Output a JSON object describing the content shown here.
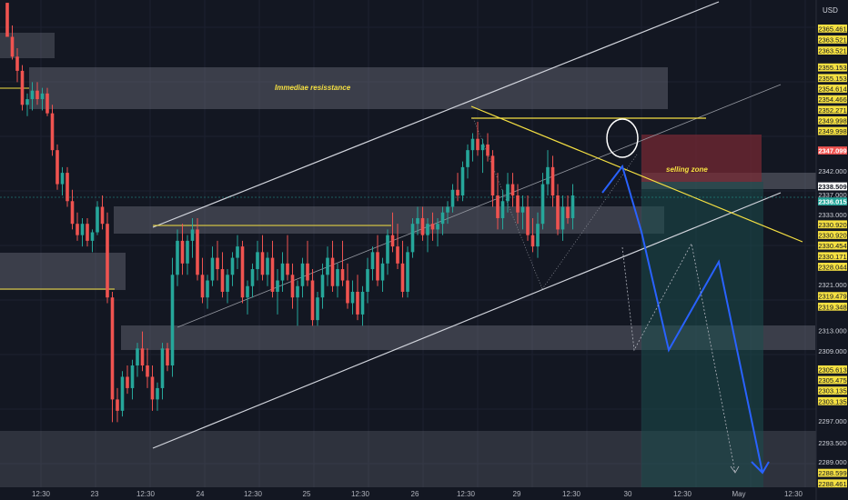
{
  "chart_data": {
    "type": "candlestick",
    "currency_label": "USD",
    "ylim": [
      2284.5,
      2370.5
    ],
    "annotations": {
      "resistance_label": "Immediae resisstance",
      "selling_label": "selling zone"
    },
    "y_tick_labels": [
      {
        "v": 2365.461,
        "t": "2365.461",
        "style": "yellow"
      },
      {
        "v": 2363.521,
        "t": "2363.521",
        "style": "yellow"
      },
      {
        "v": 2361.581,
        "t": "2363.521",
        "style": "yellow"
      },
      {
        "v": 2358.6,
        "t": "2355.153",
        "style": "yellow"
      },
      {
        "v": 2356.73,
        "t": "2355.153",
        "style": "yellow"
      },
      {
        "v": 2354.86,
        "t": "2354.614",
        "style": "yellow"
      },
      {
        "v": 2352.99,
        "t": "2354.466",
        "style": "yellow"
      },
      {
        "v": 2351.12,
        "t": "2352.271",
        "style": "yellow"
      },
      {
        "v": 2349.25,
        "t": "2349.998",
        "style": "yellow"
      },
      {
        "v": 2347.38,
        "t": "2349.998",
        "style": "yellow"
      },
      {
        "v": 2343.94,
        "t": "2347.099",
        "style": "red"
      },
      {
        "v": 2340.3,
        "t": "2342.000",
        "style": "plain"
      },
      {
        "v": 2337.6,
        "t": "2338.509",
        "style": "white"
      },
      {
        "v": 2336.2,
        "t": "2337.000",
        "style": "plain"
      },
      {
        "v": 2334.94,
        "t": "2336.015",
        "style": "teal"
      },
      {
        "v": 2332.6,
        "t": "2333.000",
        "style": "plain"
      },
      {
        "v": 2330.9,
        "t": "2330.920",
        "style": "yellow"
      },
      {
        "v": 2329.03,
        "t": "2330.920",
        "style": "yellow"
      },
      {
        "v": 2327.16,
        "t": "2330.454",
        "style": "yellow"
      },
      {
        "v": 2325.29,
        "t": "2330.171",
        "style": "yellow"
      },
      {
        "v": 2323.42,
        "t": "2328.044",
        "style": "yellow"
      },
      {
        "v": 2320.3,
        "t": "2321.000",
        "style": "plain"
      },
      {
        "v": 2318.25,
        "t": "2319.479",
        "style": "yellow"
      },
      {
        "v": 2316.38,
        "t": "2319.348",
        "style": "yellow"
      },
      {
        "v": 2312.2,
        "t": "2313.000",
        "style": "plain"
      },
      {
        "v": 2308.6,
        "t": "2309.000",
        "style": "plain"
      },
      {
        "v": 2305.3,
        "t": "2305.613",
        "style": "yellow"
      },
      {
        "v": 2303.43,
        "t": "2305.475",
        "style": "yellow"
      },
      {
        "v": 2301.56,
        "t": "2303.135",
        "style": "yellow"
      },
      {
        "v": 2299.69,
        "t": "2303.135",
        "style": "yellow"
      },
      {
        "v": 2296.2,
        "t": "2297.000",
        "style": "plain"
      },
      {
        "v": 2292.4,
        "t": "2293.500",
        "style": "plain"
      },
      {
        "v": 2289.0,
        "t": "2289.000",
        "style": "plain"
      },
      {
        "v": 2287.05,
        "t": "2288.599",
        "style": "yellow"
      },
      {
        "v": 2285.18,
        "t": "2288.461",
        "style": "yellow"
      }
    ],
    "x_tick_labels": [
      "12:30",
      "23",
      "12:30",
      "24",
      "12:30",
      "25",
      "12:30",
      "26",
      "12:30",
      "29",
      "12:30",
      "30",
      "12:30",
      "May",
      "12:30"
    ],
    "candles": [
      [
        2370,
        2370,
        2364,
        2364
      ],
      [
        2364,
        2366,
        2360,
        2360.5
      ],
      [
        2360.5,
        2362,
        2356,
        2358
      ],
      [
        2358,
        2359,
        2351,
        2352
      ],
      [
        2352,
        2354,
        2350,
        2353
      ],
      [
        2353,
        2356,
        2351,
        2354.5
      ],
      [
        2354.5,
        2356,
        2352,
        2353
      ],
      [
        2353,
        2355,
        2351,
        2354
      ],
      [
        2354,
        2355,
        2350,
        2350.5
      ],
      [
        2350.5,
        2352,
        2343,
        2344
      ],
      [
        2344,
        2345,
        2337,
        2338
      ],
      [
        2338,
        2341,
        2336,
        2340
      ],
      [
        2340,
        2341,
        2334,
        2335
      ],
      [
        2335,
        2337,
        2330,
        2331
      ],
      [
        2331,
        2333,
        2328,
        2329
      ],
      [
        2329,
        2332,
        2327,
        2331
      ],
      [
        2331,
        2332,
        2327,
        2328
      ],
      [
        2328,
        2330,
        2326,
        2329.5
      ],
      [
        2329.5,
        2335,
        2329,
        2334
      ],
      [
        2334,
        2336,
        2330,
        2331
      ],
      [
        2331,
        2333,
        2317,
        2318
      ],
      [
        2318,
        2319,
        2296,
        2300
      ],
      [
        2300,
        2302,
        2296,
        2298
      ],
      [
        2298,
        2305,
        2297,
        2304
      ],
      [
        2304,
        2306,
        2301,
        2302
      ],
      [
        2302,
        2307,
        2300,
        2306
      ],
      [
        2306,
        2310,
        2304,
        2309
      ],
      [
        2309,
        2312,
        2305,
        2306
      ],
      [
        2306,
        2309,
        2302,
        2304
      ],
      [
        2304,
        2306,
        2298,
        2300
      ],
      [
        2300,
        2303,
        2298,
        2302
      ],
      [
        2302,
        2310,
        2300,
        2309
      ],
      [
        2309,
        2310,
        2305,
        2306
      ],
      [
        2306,
        2325,
        2304,
        2322
      ],
      [
        2322,
        2330,
        2320,
        2328
      ],
      [
        2328,
        2331,
        2322,
        2324
      ],
      [
        2324,
        2329,
        2322,
        2328
      ],
      [
        2328,
        2332,
        2325,
        2330
      ],
      [
        2330,
        2332,
        2321,
        2322
      ],
      [
        2322,
        2325,
        2317,
        2318
      ],
      [
        2318,
        2322,
        2316,
        2321
      ],
      [
        2321,
        2327,
        2320,
        2325
      ],
      [
        2325,
        2328,
        2321,
        2323
      ],
      [
        2323,
        2326,
        2318,
        2319
      ],
      [
        2319,
        2323,
        2317,
        2322
      ],
      [
        2322,
        2326,
        2320,
        2325
      ],
      [
        2325,
        2329,
        2323,
        2327
      ],
      [
        2327,
        2328,
        2317,
        2318
      ],
      [
        2318,
        2321,
        2315,
        2320
      ],
      [
        2320,
        2324,
        2318,
        2323
      ],
      [
        2323,
        2328,
        2321,
        2326
      ],
      [
        2326,
        2329,
        2321,
        2322
      ],
      [
        2322,
        2326,
        2320,
        2325
      ],
      [
        2325,
        2328,
        2318,
        2319
      ],
      [
        2319,
        2323,
        2315,
        2321
      ],
      [
        2321,
        2326,
        2319,
        2324
      ],
      [
        2324,
        2329,
        2321,
        2322
      ],
      [
        2322,
        2324,
        2316,
        2318
      ],
      [
        2318,
        2321,
        2313,
        2320
      ],
      [
        2320,
        2325,
        2318,
        2324
      ],
      [
        2324,
        2328,
        2320,
        2321
      ],
      [
        2321,
        2323,
        2313,
        2314
      ],
      [
        2314,
        2319,
        2313,
        2318
      ],
      [
        2318,
        2324,
        2316,
        2322
      ],
      [
        2322,
        2327,
        2320,
        2325
      ],
      [
        2325,
        2328,
        2319,
        2320
      ],
      [
        2320,
        2324,
        2318,
        2323
      ],
      [
        2323,
        2328,
        2320,
        2321
      ],
      [
        2321,
        2324,
        2316,
        2317
      ],
      [
        2317,
        2321,
        2315,
        2319
      ],
      [
        2319,
        2322,
        2314,
        2315
      ],
      [
        2315,
        2320,
        2313,
        2319
      ],
      [
        2319,
        2325,
        2317,
        2323
      ],
      [
        2323,
        2327,
        2321,
        2326
      ],
      [
        2326,
        2329,
        2320,
        2321
      ],
      [
        2321,
        2325,
        2319,
        2324
      ],
      [
        2324,
        2330,
        2322,
        2329
      ],
      [
        2329,
        2333,
        2326,
        2327
      ],
      [
        2327,
        2331,
        2323,
        2324
      ],
      [
        2324,
        2328,
        2318,
        2319
      ],
      [
        2319,
        2327,
        2318,
        2326
      ],
      [
        2326,
        2332,
        2325,
        2331
      ],
      [
        2331,
        2334,
        2329,
        2332
      ],
      [
        2332,
        2334,
        2328,
        2329
      ],
      [
        2329,
        2332,
        2326,
        2331
      ],
      [
        2331,
        2333,
        2328,
        2330
      ],
      [
        2330,
        2332,
        2327,
        2331
      ],
      [
        2331,
        2334,
        2329,
        2333
      ],
      [
        2333,
        2335,
        2331,
        2334
      ],
      [
        2334,
        2338,
        2333,
        2337
      ],
      [
        2337,
        2340,
        2335,
        2336
      ],
      [
        2336,
        2342,
        2335,
        2341
      ],
      [
        2341,
        2345,
        2339,
        2344
      ],
      [
        2344,
        2347,
        2342,
        2346
      ],
      [
        2346,
        2349,
        2343,
        2344
      ],
      [
        2344,
        2346,
        2340,
        2345
      ],
      [
        2345,
        2347,
        2342,
        2343
      ],
      [
        2343,
        2344,
        2334,
        2336
      ],
      [
        2336,
        2340,
        2330,
        2332
      ],
      [
        2332,
        2337,
        2330,
        2335
      ],
      [
        2335,
        2340,
        2333,
        2338
      ],
      [
        2338,
        2340,
        2334,
        2336
      ],
      [
        2336,
        2338,
        2331,
        2333
      ],
      [
        2333,
        2336,
        2330,
        2334
      ],
      [
        2334,
        2336,
        2328,
        2329
      ],
      [
        2329,
        2332,
        2326,
        2327
      ],
      [
        2327,
        2333,
        2325,
        2331
      ],
      [
        2331,
        2340,
        2330,
        2338
      ],
      [
        2338,
        2344,
        2336,
        2341
      ],
      [
        2341,
        2343,
        2334,
        2336
      ],
      [
        2336,
        2338,
        2329,
        2330
      ],
      [
        2330,
        2336,
        2328,
        2334
      ],
      [
        2334,
        2336,
        2331,
        2332
      ],
      [
        2332,
        2338,
        2330,
        2336
      ]
    ]
  }
}
